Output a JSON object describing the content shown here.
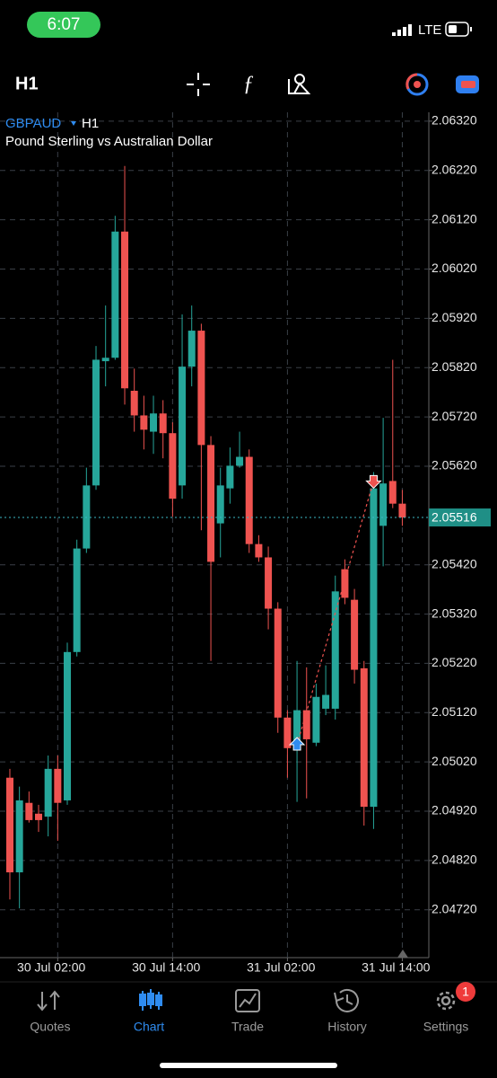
{
  "status_bar": {
    "time": "6:07",
    "network": "LTE"
  },
  "toolbar": {
    "timeframe": "H1"
  },
  "chart_data": {
    "type": "candlestick",
    "symbol": "GBPAUD",
    "timeframe": "H1",
    "description": "Pound Sterling vs Australian Dollar",
    "up_color": "#26a69a",
    "down_color": "#ef5350",
    "open": [
      2.04988,
      2.04796,
      2.04937,
      2.04915,
      2.04909,
      2.05006,
      2.04942,
      2.05243,
      2.05453,
      2.05581,
      2.05833,
      2.0584,
      2.06096,
      2.05773,
      2.05723,
      2.0569,
      2.05727,
      2.05687,
      2.05581,
      2.05822,
      2.05895,
      2.05663,
      2.05504,
      2.05575,
      2.05621,
      2.05639,
      2.05462,
      2.05435,
      2.05331,
      2.0511,
      2.05048,
      2.05125,
      2.05059,
      2.05128,
      2.05128,
      2.05411,
      2.05349,
      2.0521,
      2.04929,
      2.05499,
      2.0559,
      2.05544
    ],
    "high": [
      2.05006,
      2.0497,
      2.0496,
      2.04933,
      2.05033,
      2.05033,
      2.05262,
      2.05471,
      2.05617,
      2.05864,
      2.05946,
      2.06128,
      2.06229,
      2.05818,
      2.05763,
      2.05763,
      2.05754,
      2.05709,
      2.05928,
      2.05946,
      2.05909,
      2.05681,
      2.05617,
      2.05658,
      2.0569,
      2.05654,
      2.0548,
      2.05457,
      2.05344,
      2.05125,
      2.05225,
      2.05212,
      2.05179,
      2.05216,
      2.05398,
      2.05431,
      2.05371,
      2.05225,
      2.05608,
      2.05718,
      2.05836,
      2.05572
    ],
    "low": [
      2.04741,
      2.04723,
      2.04897,
      2.04878,
      2.04869,
      2.0486,
      2.04933,
      2.05234,
      2.05444,
      2.05572,
      2.05782,
      2.05836,
      2.05745,
      2.0569,
      2.05654,
      2.05645,
      2.05636,
      2.05517,
      2.05554,
      2.05782,
      2.0549,
      2.05225,
      2.05435,
      2.05544,
      2.05617,
      2.05444,
      2.05426,
      2.05289,
      2.05079,
      2.04988,
      2.04939,
      2.04946,
      2.05052,
      2.05115,
      2.05106,
      2.0534,
      2.05179,
      2.04891,
      2.04884,
      2.05417,
      2.05535,
      2.05499
    ],
    "close": [
      2.04796,
      2.04942,
      2.04902,
      2.04902,
      2.05006,
      2.04937,
      2.05243,
      2.05453,
      2.05581,
      2.05836,
      2.0584,
      2.06096,
      2.05778,
      2.05723,
      2.05694,
      2.05727,
      2.05687,
      2.05554,
      2.05822,
      2.05895,
      2.05663,
      2.05426,
      2.05581,
      2.05621,
      2.05639,
      2.05462,
      2.05435,
      2.05331,
      2.0511,
      2.05048,
      2.05125,
      2.05066,
      2.05152,
      2.05156,
      2.05366,
      2.05353,
      2.05207,
      2.04929,
      2.05575,
      2.05585,
      2.05544,
      2.05516
    ],
    "current_price": 2.05516,
    "trade": {
      "open_index": 30,
      "open_price": 2.05055,
      "close_index": 38,
      "close_price": 2.0559
    },
    "xlim": [
      -1.03,
      43.77
    ],
    "xticks": [
      {
        "value": 5,
        "label": "30 Jul 02:00"
      },
      {
        "value": 17,
        "label": "30 Jul 14:00"
      },
      {
        "value": 29,
        "label": "31 Jul 02:00"
      },
      {
        "value": 41,
        "label": "31 Jul 14:00"
      }
    ],
    "ylim": [
      2.04623,
      2.06338
    ],
    "yticks": [
      {
        "value": 2.0632,
        "label": "2.06320"
      },
      {
        "value": 2.0622,
        "label": "2.06220"
      },
      {
        "value": 2.0612,
        "label": "2.06120"
      },
      {
        "value": 2.0602,
        "label": "2.06020"
      },
      {
        "value": 2.0592,
        "label": "2.05920"
      },
      {
        "value": 2.0582,
        "label": "2.05820"
      },
      {
        "value": 2.0572,
        "label": "2.05720"
      },
      {
        "value": 2.0562,
        "label": "2.05620"
      },
      {
        "value": 2.0542,
        "label": "2.05420"
      },
      {
        "value": 2.0532,
        "label": "2.05320"
      },
      {
        "value": 2.0522,
        "label": "2.05220"
      },
      {
        "value": 2.0512,
        "label": "2.05120"
      },
      {
        "value": 2.0502,
        "label": "2.05020"
      },
      {
        "value": 2.0492,
        "label": "2.04920"
      },
      {
        "value": 2.0482,
        "label": "2.04820"
      },
      {
        "value": 2.0472,
        "label": "2.04720"
      }
    ],
    "grid": true
  },
  "tabs": [
    {
      "label": "Quotes"
    },
    {
      "label": "Chart"
    },
    {
      "label": "Trade"
    },
    {
      "label": "History"
    },
    {
      "label": "Settings",
      "badge": 1
    }
  ],
  "active_tab": 1
}
